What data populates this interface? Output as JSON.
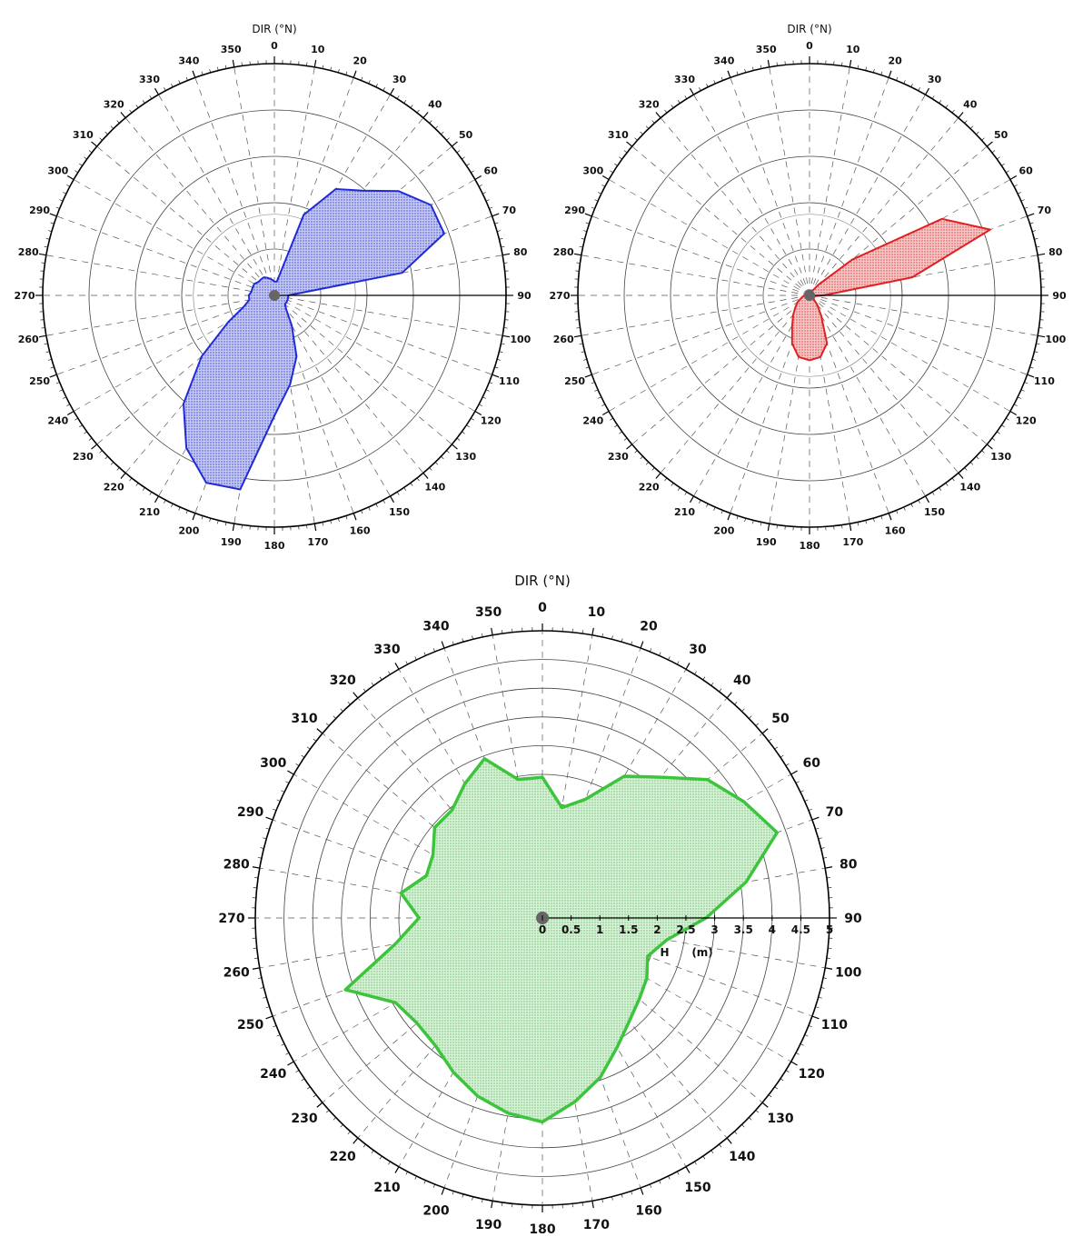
{
  "chart_data": [
    {
      "type": "polar-area",
      "axis_title": "DIR (°N)",
      "angle_ticks": [
        "0",
        "10",
        "20",
        "30",
        "40",
        "50",
        "60",
        "70",
        "80",
        "90",
        "100",
        "110",
        "120",
        "130",
        "140",
        "150",
        "160",
        "170",
        "180",
        "190",
        "200",
        "210",
        "220",
        "230",
        "240",
        "250",
        "260",
        "270",
        "280",
        "290",
        "300",
        "310",
        "320",
        "330",
        "340",
        "350"
      ],
      "series": [
        {
          "color": "#1f2bd6",
          "fill": "#c5c9f2",
          "angle": [
            0,
            10,
            20,
            30,
            40,
            50,
            60,
            70,
            80,
            90,
            100,
            110,
            120,
            130,
            140,
            150,
            160,
            170,
            180,
            190,
            200,
            210,
            220,
            230,
            240,
            250,
            260,
            270,
            280,
            290,
            300,
            310,
            320,
            330,
            340,
            350
          ],
          "r": [
            0.3,
            0.3,
            1.85,
            2.65,
            2.95,
            3.5,
            3.9,
            3.9,
            2.8,
            0.3,
            0.3,
            0.3,
            0.3,
            0.3,
            0.4,
            0.75,
            1.4,
            1.95,
            2.6,
            4.25,
            4.3,
            3.8,
            3.05,
            2.05,
            1.15,
            0.7,
            0.55,
            0.55,
            0.5,
            0.5,
            0.5,
            0.45,
            0.45,
            0.45,
            0.4,
            0.35
          ]
        }
      ]
    },
    {
      "type": "polar-area",
      "axis_title": "DIR (°N)",
      "angle_ticks": [
        "0",
        "10",
        "20",
        "30",
        "40",
        "50",
        "60",
        "70",
        "80",
        "90",
        "100",
        "110",
        "120",
        "130",
        "140",
        "150",
        "160",
        "170",
        "180",
        "190",
        "200",
        "210",
        "220",
        "230",
        "240",
        "250",
        "260",
        "270",
        "280",
        "290",
        "300",
        "310",
        "320",
        "330",
        "340",
        "350"
      ],
      "series": [
        {
          "color": "#e02020",
          "fill": "#f7c8c8",
          "angle": [
            0,
            10,
            20,
            30,
            40,
            50,
            60,
            70,
            80,
            90,
            100,
            110,
            120,
            130,
            140,
            150,
            160,
            170,
            180,
            190,
            200,
            210,
            220,
            230,
            240,
            250,
            260,
            270,
            280,
            290,
            300,
            310,
            320,
            330,
            340,
            350
          ],
          "r": [
            0.1,
            0.1,
            0.1,
            0.1,
            0.3,
            1.2,
            3.3,
            4.15,
            2.25,
            0.3,
            0.1,
            0.1,
            0.1,
            0.1,
            0.25,
            0.5,
            1.1,
            1.35,
            1.4,
            1.35,
            1.1,
            0.75,
            0.55,
            0.4,
            0.3,
            0.2,
            0.15,
            0.1,
            0.1,
            0.1,
            0.1,
            0.1,
            0.1,
            0.1,
            0.1,
            0.1
          ]
        }
      ]
    },
    {
      "type": "polar-area",
      "axis_title": "DIR (°N)",
      "angle_ticks": [
        "0",
        "10",
        "20",
        "30",
        "40",
        "50",
        "60",
        "70",
        "80",
        "90",
        "100",
        "110",
        "120",
        "130",
        "140",
        "150",
        "160",
        "170",
        "180",
        "190",
        "200",
        "210",
        "220",
        "230",
        "240",
        "250",
        "260",
        "270",
        "280",
        "290",
        "300",
        "310",
        "320",
        "330",
        "340",
        "350"
      ],
      "radial_ticks": [
        "0",
        "0.5",
        "1",
        "1.5",
        "2",
        "2.5",
        "3",
        "3.5",
        "4",
        "4.5",
        "5"
      ],
      "radial_axis_label": "H",
      "radial_axis_unit": "(m)",
      "rlim": [
        0,
        5
      ],
      "series": [
        {
          "color": "#3cc43c",
          "fill": "#cfeecf",
          "angle": [
            0,
            10,
            20,
            30,
            40,
            50,
            60,
            70,
            80,
            90,
            100,
            110,
            120,
            130,
            140,
            150,
            160,
            170,
            180,
            190,
            200,
            210,
            220,
            230,
            240,
            250,
            260,
            270,
            280,
            290,
            300,
            310,
            320,
            330,
            340,
            350
          ],
          "r": [
            2.45,
            1.95,
            2.2,
            2.85,
            3.2,
            3.75,
            4.05,
            4.35,
            3.6,
            2.85,
            2.2,
            1.95,
            2.1,
            2.2,
            2.35,
            2.6,
            2.95,
            3.25,
            3.55,
            3.45,
            3.3,
            3.1,
            2.9,
            2.85,
            2.95,
            3.65,
            2.6,
            2.15,
            2.5,
            2.15,
            2.2,
            2.45,
            2.45,
            2.7,
            2.95,
            2.45
          ]
        }
      ]
    }
  ]
}
